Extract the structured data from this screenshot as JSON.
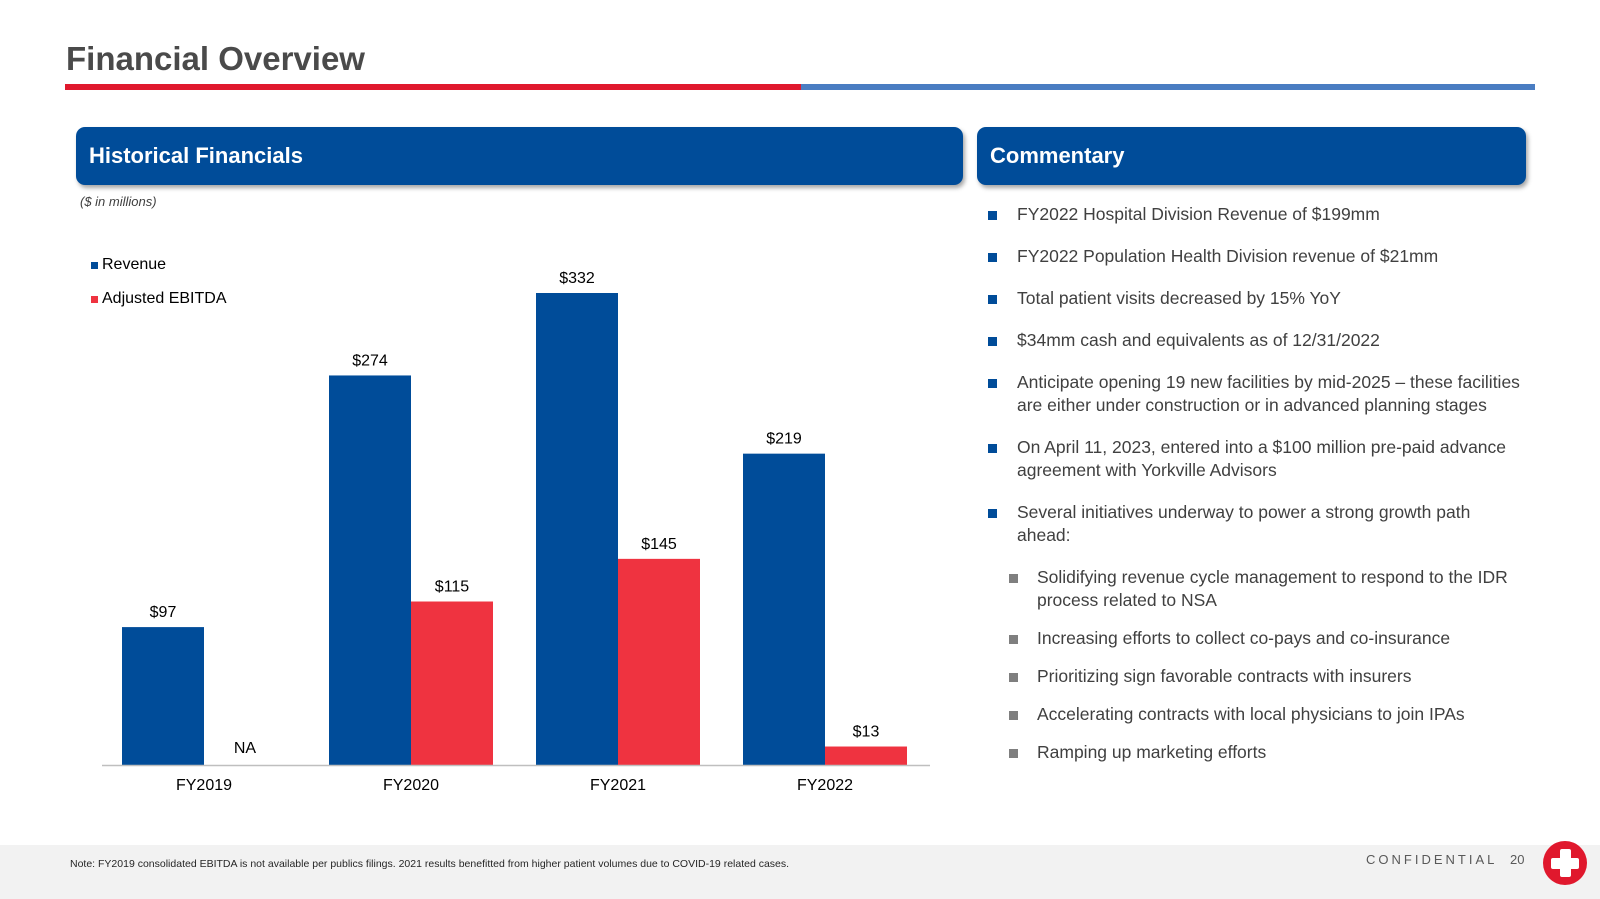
{
  "page": {
    "title": "Financial Overview",
    "left_panel_title": "Historical Financials",
    "right_panel_title": "Commentary",
    "units_note": "($ in millions)"
  },
  "colors": {
    "revenue": "#004c99",
    "ebitda": "#ef3340",
    "header_blue": "#004c99",
    "rule_red": "#e0182d",
    "rule_blue": "#4a7dc2"
  },
  "chart_data": {
    "type": "bar",
    "categories": [
      "FY2019",
      "FY2020",
      "FY2021",
      "FY2022"
    ],
    "series": [
      {
        "name": "Revenue",
        "values": [
          97,
          274,
          332,
          219
        ],
        "labels": [
          "$97",
          "$274",
          "$332",
          "$219"
        ],
        "color": "#004c99"
      },
      {
        "name": "Adjusted EBITDA",
        "values": [
          null,
          115,
          145,
          13
        ],
        "labels": [
          "NA",
          "$115",
          "$145",
          "$13"
        ],
        "color": "#ef3340"
      }
    ],
    "ylim": [
      0,
      332
    ],
    "legend_position": "top-left",
    "grid": false
  },
  "commentary": {
    "bullets": [
      "FY2022 Hospital Division Revenue of $199mm",
      "FY2022 Population Health Division revenue of $21mm",
      "Total patient visits decreased by 15% YoY",
      "$34mm cash and equivalents as of 12/31/2022",
      "Anticipate opening 19 new facilities by mid-2025 – these facilities are either under construction or in advanced planning stages",
      "On April 11, 2023, entered into a $100 million pre-paid advance agreement with Yorkville Advisors",
      "Several initiatives underway to power a strong growth path ahead:"
    ],
    "sub_bullets": [
      "Solidifying revenue cycle management to respond to the IDR process related to NSA",
      "Increasing efforts to collect co-pays and co-insurance",
      "Prioritizing sign favorable contracts with insurers",
      "Accelerating contracts with local physicians to join IPAs",
      "Ramping up marketing efforts"
    ]
  },
  "footer": {
    "note": "Note: FY2019 consolidated EBITDA is not available per publics filings. 2021 results benefitted from higher patient volumes due to COVID-19 related cases.",
    "confidential": "CONFIDENTIAL",
    "page_number": "20"
  }
}
